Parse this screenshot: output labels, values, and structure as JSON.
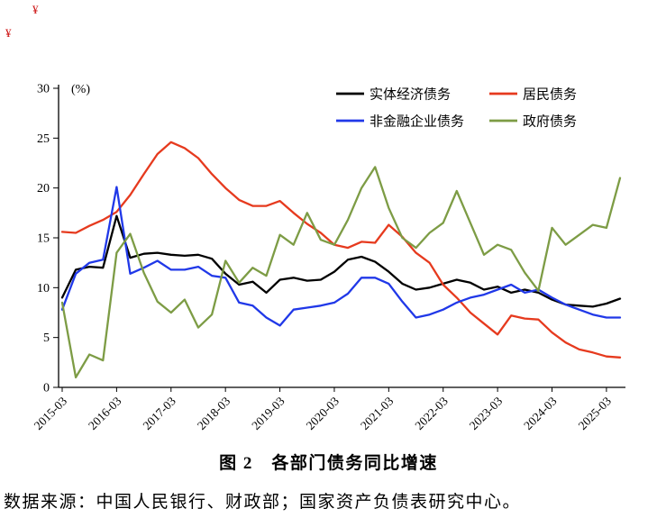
{
  "annotations": {
    "top_mark": "¥",
    "side_mark": "¥"
  },
  "figure": {
    "caption": "图 2　各部门债务同比增速",
    "source_note": "数据来源：中国人民银行、财政部；国家资产负债表研究中心。"
  },
  "chart_data": {
    "type": "line",
    "title": "图 2 各部门债务同比增速",
    "unit_label": "(%)",
    "ylim": [
      0,
      30
    ],
    "ytick_step": 5,
    "grid": false,
    "legend_position": "top",
    "x_tick_labels": [
      "2015-03",
      "2016-03",
      "2017-03",
      "2018-03",
      "2019-03",
      "2020-03",
      "2021-03",
      "2022-03",
      "2023-03",
      "2024-03",
      "2025-03"
    ],
    "x": [
      "2015-03",
      "2015-06",
      "2015-09",
      "2015-12",
      "2016-03",
      "2016-06",
      "2016-09",
      "2016-12",
      "2017-03",
      "2017-06",
      "2017-09",
      "2017-12",
      "2018-03",
      "2018-06",
      "2018-09",
      "2018-12",
      "2019-03",
      "2019-06",
      "2019-09",
      "2019-12",
      "2020-03",
      "2020-06",
      "2020-09",
      "2020-12",
      "2021-03",
      "2021-06",
      "2021-09",
      "2021-12",
      "2022-03",
      "2022-06",
      "2022-09",
      "2022-12",
      "2023-03",
      "2023-06",
      "2023-09",
      "2023-12",
      "2024-03",
      "2024-06",
      "2024-09",
      "2024-12",
      "2025-03",
      "2025-06"
    ],
    "series": [
      {
        "name": "实体经济债务",
        "color": "#000000",
        "values": [
          9.0,
          11.8,
          12.1,
          12.0,
          17.2,
          13.0,
          13.4,
          13.5,
          13.3,
          13.2,
          13.3,
          12.9,
          11.4,
          10.3,
          10.6,
          9.5,
          10.8,
          11.0,
          10.7,
          10.8,
          11.6,
          12.8,
          13.1,
          12.6,
          11.6,
          10.4,
          9.8,
          10.0,
          10.4,
          10.8,
          10.5,
          9.8,
          10.1,
          9.5,
          9.8,
          9.5,
          8.8,
          8.3,
          8.2,
          8.1,
          8.4,
          8.9
        ]
      },
      {
        "name": "居民债务",
        "color": "#e63a1e",
        "values": [
          15.6,
          15.5,
          16.2,
          16.8,
          17.6,
          19.3,
          21.4,
          23.4,
          24.6,
          24.0,
          23.0,
          21.4,
          20.0,
          18.8,
          18.2,
          18.2,
          18.7,
          17.5,
          16.4,
          15.5,
          14.3,
          14.0,
          14.6,
          14.5,
          16.3,
          15.1,
          13.5,
          12.5,
          10.3,
          9.0,
          7.5,
          6.4,
          5.3,
          7.2,
          6.9,
          6.8,
          5.5,
          4.5,
          3.8,
          3.5,
          3.1,
          3.0
        ]
      },
      {
        "name": "非金融企业债务",
        "color": "#2038e8",
        "values": [
          7.8,
          11.4,
          12.5,
          12.8,
          20.1,
          11.4,
          12.0,
          12.7,
          11.8,
          11.8,
          12.1,
          11.2,
          11.0,
          8.5,
          8.2,
          7.0,
          6.2,
          7.8,
          8.0,
          8.2,
          8.5,
          9.4,
          11.0,
          11.0,
          10.4,
          8.6,
          7.0,
          7.3,
          7.8,
          8.5,
          9.0,
          9.3,
          9.8,
          10.3,
          9.5,
          9.8,
          9.0,
          8.3,
          7.8,
          7.3,
          7.0,
          7.0
        ]
      },
      {
        "name": "政府债务",
        "color": "#7d9c45",
        "values": [
          8.5,
          1.0,
          3.3,
          2.7,
          13.5,
          15.4,
          11.5,
          8.6,
          7.5,
          8.8,
          6.0,
          7.3,
          12.7,
          10.5,
          12.0,
          11.2,
          15.3,
          14.3,
          17.5,
          14.8,
          14.3,
          16.8,
          20.0,
          22.1,
          18.0,
          15.0,
          14.0,
          15.5,
          16.5,
          19.7,
          16.5,
          13.3,
          14.3,
          13.8,
          11.5,
          9.7,
          16.0,
          14.3,
          15.3,
          16.3,
          16.0,
          21.0
        ]
      }
    ]
  }
}
